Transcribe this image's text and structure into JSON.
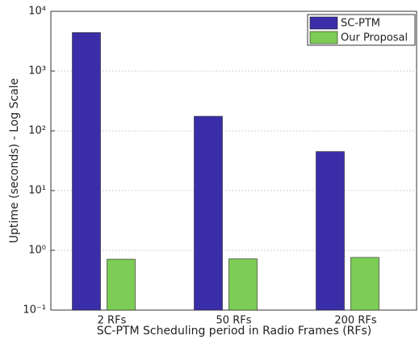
{
  "chart_data": {
    "type": "bar",
    "xlabel": "SC-PTM Scheduling period in Radio Frames (RFs)",
    "ylabel": "Uptime (seconds) - Log Scale",
    "categories": [
      "2 RFs",
      "50 RFs",
      "200 RFs"
    ],
    "series": [
      {
        "name": "SC-PTM",
        "color": "#3a2ea8",
        "values": [
          4400,
          175,
          45
        ]
      },
      {
        "name": "Our Proposal",
        "color": "#7dcc55",
        "values": [
          0.71,
          0.72,
          0.76
        ]
      }
    ],
    "log_y": true,
    "ylim": [
      0.1,
      10000
    ],
    "yticks": [
      {
        "value": 0.1,
        "label": "10⁻¹"
      },
      {
        "value": 1,
        "label": "10⁰"
      },
      {
        "value": 10,
        "label": "10¹"
      },
      {
        "value": 100,
        "label": "10²"
      },
      {
        "value": 1000,
        "label": "10³"
      },
      {
        "value": 10000,
        "label": "10⁴"
      }
    ],
    "grid": true,
    "legend": "upper right"
  }
}
